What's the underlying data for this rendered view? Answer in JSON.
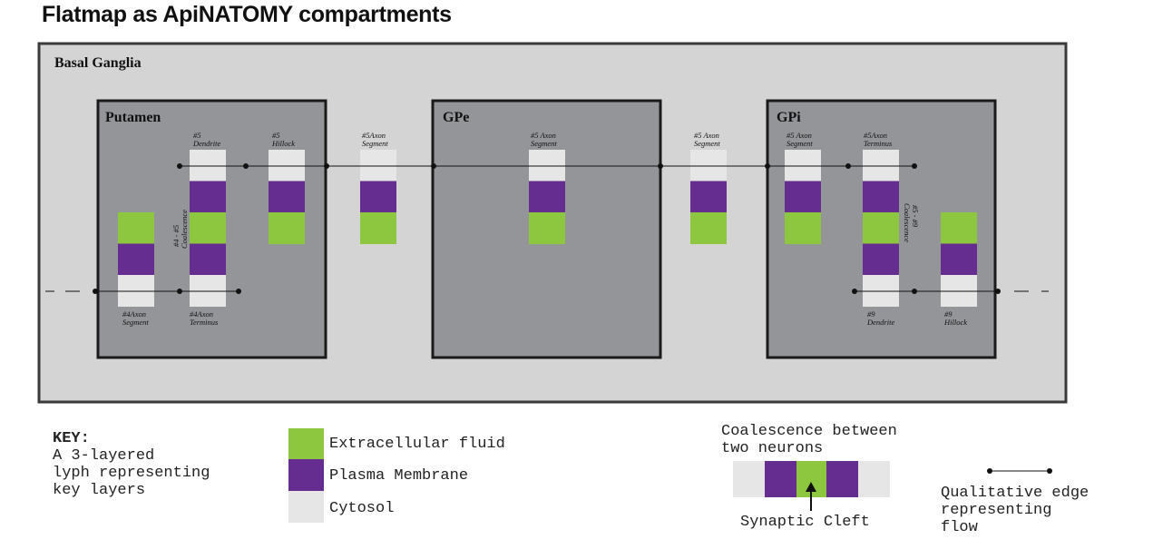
{
  "title": "Flatmap as ApiNATOMY compartments",
  "colors": {
    "extracellular": "#8dc63f",
    "membrane": "#662d91",
    "cytosol": "#e6e6e6",
    "outer_box": "#d4d4d4",
    "inner_box": "#939598"
  },
  "outer": {
    "label": "Basal Ganglia"
  },
  "boxes": [
    {
      "id": "putamen",
      "label": "Putamen"
    },
    {
      "id": "gpe",
      "label": "GPe"
    },
    {
      "id": "gpi",
      "label": "GPi"
    }
  ],
  "lyph_labels": {
    "p_dendrite": [
      "#5",
      "Dendrite"
    ],
    "p_hillock": [
      "#5",
      "Hillock"
    ],
    "between1": [
      "#5Axon",
      "Segment"
    ],
    "gpe_axon": [
      "#5 Axon",
      "Segment"
    ],
    "between2": [
      "#5 Axon",
      "Segment"
    ],
    "gpi_axon": [
      "#5 Axon",
      "Segment"
    ],
    "gpi_terminus": [
      "#5Axon",
      "Terminus"
    ],
    "p_axon4": [
      "#4Axon",
      "Segment"
    ],
    "p_terminus4": [
      "#4Axon",
      "Terminus"
    ],
    "gpi_dendrite9": [
      "#9",
      "Dendrite"
    ],
    "gpi_hillock9": [
      "#9",
      "Hillock"
    ]
  },
  "coalescence_labels": {
    "left": [
      "#4 - #5",
      "Coalescence"
    ],
    "right": [
      "#5 - #9",
      "Coalescence"
    ]
  },
  "key": {
    "heading": "KEY:",
    "description": [
      "A 3-layered",
      "lyph representing",
      "key layers"
    ],
    "layers": [
      "Extracellular fluid",
      "Plasma Membrane",
      "Cytosol"
    ],
    "coalescence_title": [
      "Coalescence between",
      "two neurons"
    ],
    "synaptic_cleft": "Synaptic Cleft",
    "edge_text": [
      "Qualitative edge",
      "representing",
      "flow"
    ]
  }
}
